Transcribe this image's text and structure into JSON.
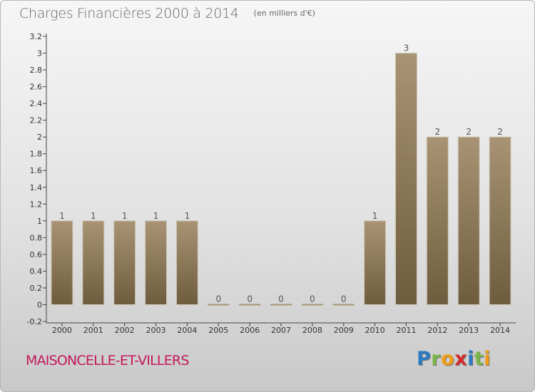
{
  "header": {
    "title": "Charges Financières 2000 à 2014",
    "unit": "(en milliers d'€)"
  },
  "footer": {
    "commune": "MAISONCELLE-ET-VILLERS",
    "logo_letters": [
      "P",
      "r",
      "o",
      "x",
      "i",
      "t",
      "i"
    ],
    "logo_colors": [
      "#2b7bc4",
      "#7ab648",
      "#f39c12",
      "#d42a2a",
      "#2b7bc4",
      "#7ab648",
      "#f39c12"
    ]
  },
  "chart_data": {
    "type": "bar",
    "title": "Charges Financières 2000 à 2014",
    "unit": "(en milliers d'€)",
    "categories": [
      "2000",
      "2001",
      "2002",
      "2003",
      "2004",
      "2005",
      "2006",
      "2007",
      "2008",
      "2009",
      "2010",
      "2011",
      "2012",
      "2013",
      "2014"
    ],
    "values": [
      1,
      1,
      1,
      1,
      1,
      0,
      0,
      0,
      0,
      0,
      1,
      3,
      2,
      2,
      2
    ],
    "data_labels": [
      "1",
      "1",
      "1",
      "1",
      "1",
      "0",
      "0",
      "0",
      "0",
      "0",
      "1",
      "3",
      "2",
      "2",
      "2"
    ],
    "y_ticks": [
      "-0.2",
      "0",
      "0.2",
      "0.4",
      "0.6",
      "0.8",
      "1",
      "1.2",
      "1.4",
      "1.6",
      "1.8",
      "2",
      "2.2",
      "2.4",
      "2.6",
      "2.8",
      "3",
      "3.2"
    ],
    "ylim": [
      -0.2,
      3.2
    ],
    "grid": false,
    "legend": "none",
    "bar_color_top": "#a89474",
    "bar_color_bottom": "#6e5c3e"
  }
}
